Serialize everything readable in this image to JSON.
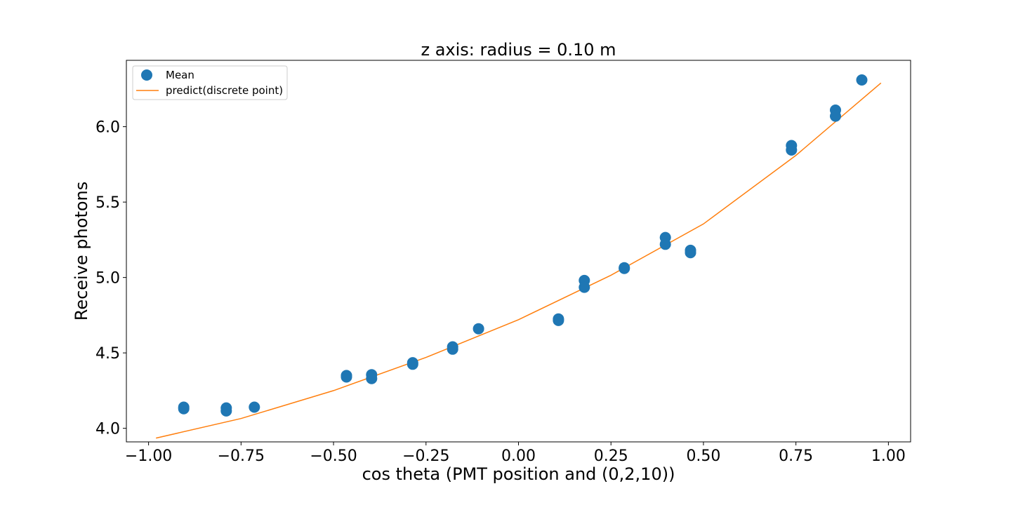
{
  "chart_data": {
    "type": "scatter",
    "title": "z axis: radius = 0.10 m",
    "xlabel": "cos theta (PMT position and (0,2,10))",
    "ylabel": "Receive photons",
    "xlim": [
      -1.06,
      1.06
    ],
    "ylim": [
      3.91,
      6.44
    ],
    "xticks": [
      -1.0,
      -0.75,
      -0.5,
      -0.25,
      0.0,
      0.25,
      0.5,
      0.75,
      1.0
    ],
    "xtick_labels": [
      "−1.00",
      "−0.75",
      "−0.50",
      "−0.25",
      "0.00",
      "0.25",
      "0.50",
      "0.75",
      "1.00"
    ],
    "yticks": [
      4.0,
      4.5,
      5.0,
      5.5,
      6.0
    ],
    "ytick_labels": [
      "4.0",
      "4.5",
      "5.0",
      "5.5",
      "6.0"
    ],
    "grid": false,
    "legend_position": "top-left",
    "series": [
      {
        "name": "Mean",
        "kind": "scatter",
        "color": "#1f77b4",
        "points": [
          [
            -0.905,
            4.14
          ],
          [
            -0.905,
            4.13
          ],
          [
            -0.79,
            4.135
          ],
          [
            -0.79,
            4.115
          ],
          [
            -0.714,
            4.14
          ],
          [
            -0.465,
            4.35
          ],
          [
            -0.465,
            4.34
          ],
          [
            -0.397,
            4.355
          ],
          [
            -0.397,
            4.33
          ],
          [
            -0.286,
            4.435
          ],
          [
            -0.286,
            4.425
          ],
          [
            -0.178,
            4.54
          ],
          [
            -0.178,
            4.525
          ],
          [
            -0.108,
            4.66
          ],
          [
            0.108,
            4.725
          ],
          [
            0.108,
            4.715
          ],
          [
            0.178,
            4.98
          ],
          [
            0.178,
            4.935
          ],
          [
            0.286,
            5.065
          ],
          [
            0.286,
            5.06
          ],
          [
            0.397,
            5.265
          ],
          [
            0.397,
            5.22
          ],
          [
            0.465,
            5.18
          ],
          [
            0.465,
            5.165
          ],
          [
            0.738,
            5.875
          ],
          [
            0.738,
            5.845
          ],
          [
            0.857,
            6.11
          ],
          [
            0.857,
            6.07
          ],
          [
            0.928,
            6.31
          ]
        ]
      },
      {
        "name": "predict(discrete point)",
        "kind": "line",
        "color": "#ff7f0e",
        "x": [
          -0.98,
          -0.75,
          -0.5,
          -0.25,
          0.0,
          0.25,
          0.5,
          0.75,
          0.98
        ],
        "y": [
          3.935,
          4.065,
          4.25,
          4.47,
          4.72,
          5.015,
          5.355,
          5.81,
          6.29
        ]
      }
    ]
  }
}
